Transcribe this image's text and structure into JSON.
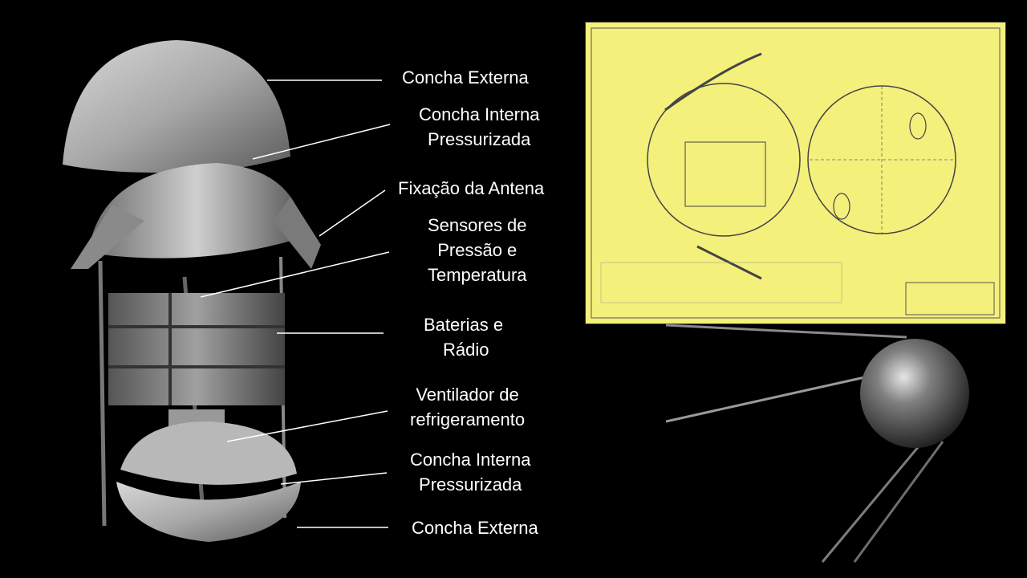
{
  "labels": {
    "outer_shell_top": "Concha Externa",
    "inner_shell_top_1": "Concha Interna",
    "inner_shell_top_2": "Pressurizada",
    "antenna_mount": "Fixação da Antena",
    "sensors_1": "Sensores de",
    "sensors_2": "Pressão e",
    "sensors_3": "Temperatura",
    "batteries_1": "Baterias e",
    "batteries_2": "Rádio",
    "fan_1": "Ventilador de",
    "fan_2": "refrigeramento",
    "inner_shell_bottom_1": "Concha Interna",
    "inner_shell_bottom_2": "Pressurizada",
    "outer_shell_bottom": "Concha Externa"
  },
  "colors": {
    "background": "#000000",
    "blueprint_paper": "#f3f07c",
    "leader_line": "#ffffff",
    "metal": "#9a9a9a"
  }
}
